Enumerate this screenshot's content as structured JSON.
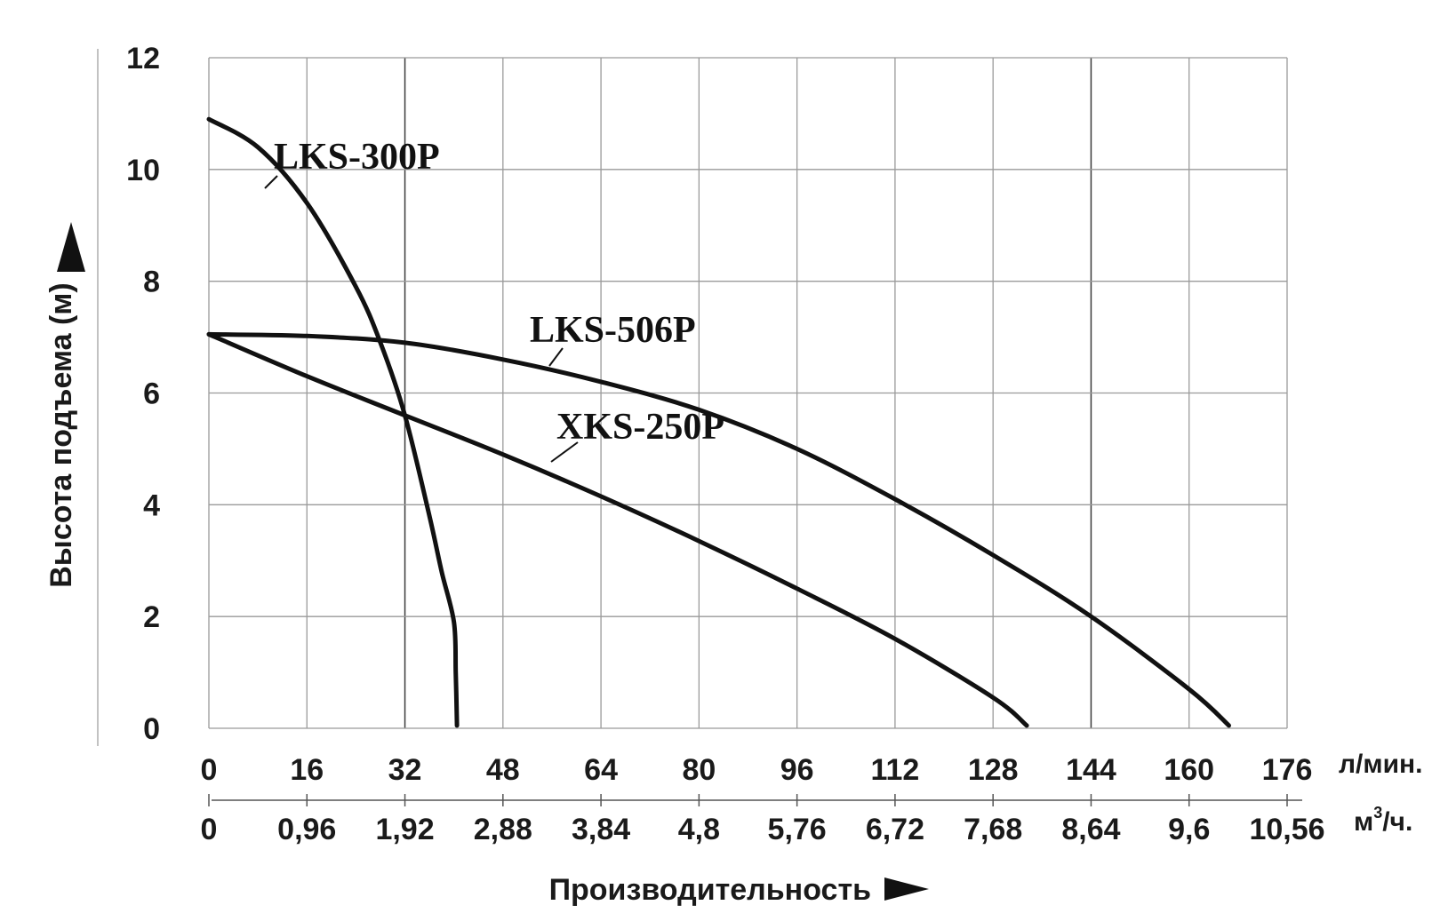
{
  "chart_data": {
    "type": "line",
    "ylabel": "Высота подъема (м)",
    "xlabel": "Производительность",
    "x_unit_primary": "л/мин.",
    "x_unit_secondary_base": "м",
    "x_unit_secondary_sup": "3",
    "x_unit_secondary_tail": "/ч.",
    "xlim": [
      0,
      176
    ],
    "ylim": [
      0,
      12
    ],
    "grid": true,
    "x_ticks_primary": [
      "0",
      "16",
      "32",
      "48",
      "64",
      "80",
      "96",
      "112",
      "128",
      "144",
      "160",
      "176"
    ],
    "x_ticks_secondary": [
      "0",
      "0,96",
      "1,92",
      "2,88",
      "3,84",
      "4,8",
      "5,76",
      "6,72",
      "7,68",
      "8,64",
      "9,6",
      "10,56"
    ],
    "y_ticks": [
      "0",
      "2",
      "4",
      "6",
      "8",
      "10",
      "12"
    ],
    "series": [
      {
        "name": "LKS-300P",
        "x": [
          0,
          8,
          16,
          24,
          28,
          32,
          36,
          38,
          40,
          40.3,
          40.5
        ],
        "y": [
          10.9,
          10.4,
          9.4,
          7.9,
          6.9,
          5.6,
          3.8,
          2.8,
          1.9,
          1.0,
          0.05
        ]
      },
      {
        "name": "LKS-506P",
        "x": [
          0,
          16,
          32,
          48,
          64,
          80,
          96,
          112,
          128,
          144,
          160,
          166.5
        ],
        "y": [
          7.05,
          7.02,
          6.9,
          6.6,
          6.2,
          5.7,
          5.0,
          4.1,
          3.1,
          2.0,
          0.7,
          0.05
        ]
      },
      {
        "name": "XKS-250P",
        "x": [
          0,
          16,
          32,
          48,
          64,
          80,
          96,
          112,
          128,
          133.5
        ],
        "y": [
          7.05,
          6.3,
          5.6,
          4.9,
          4.15,
          3.35,
          2.5,
          1.6,
          0.55,
          0.05
        ]
      }
    ]
  }
}
